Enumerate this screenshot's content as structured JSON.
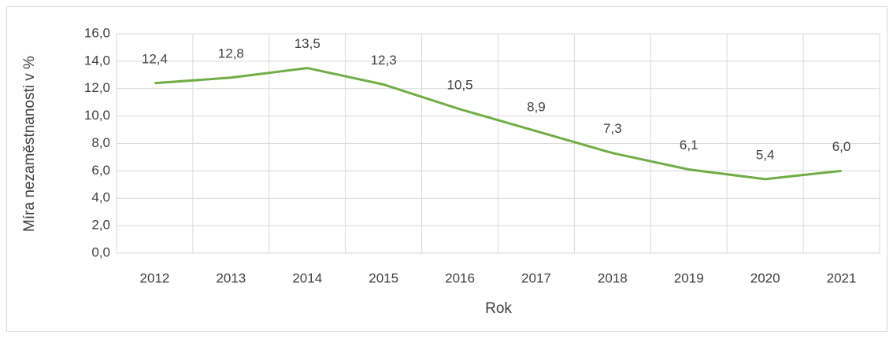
{
  "chart_data": {
    "type": "line",
    "y_axis_label": "Míra nezaměstnanosti v %",
    "x_axis_label": "Rok",
    "categories": [
      "2012",
      "2013",
      "2014",
      "2015",
      "2016",
      "2017",
      "2018",
      "2019",
      "2020",
      "2021"
    ],
    "values": [
      12.4,
      12.8,
      13.5,
      12.3,
      10.5,
      8.9,
      7.3,
      6.1,
      5.4,
      6.0
    ],
    "value_labels": [
      "12,4",
      "12,8",
      "13,5",
      "12,3",
      "10,5",
      "8,9",
      "7,3",
      "6,1",
      "5,4",
      "6,0"
    ],
    "color": "#70ad47",
    "ylim": [
      0,
      16
    ],
    "yticks": [
      {
        "value": 0,
        "label": "0,0"
      },
      {
        "value": 2,
        "label": "2,0"
      },
      {
        "value": 4,
        "label": "4,0"
      },
      {
        "value": 6,
        "label": "6,0"
      },
      {
        "value": 8,
        "label": "8,0"
      },
      {
        "value": 10,
        "label": "10,0"
      },
      {
        "value": 12,
        "label": "12,0"
      },
      {
        "value": 14,
        "label": "14,0"
      },
      {
        "value": 16,
        "label": "16,0"
      }
    ],
    "grid": true
  }
}
